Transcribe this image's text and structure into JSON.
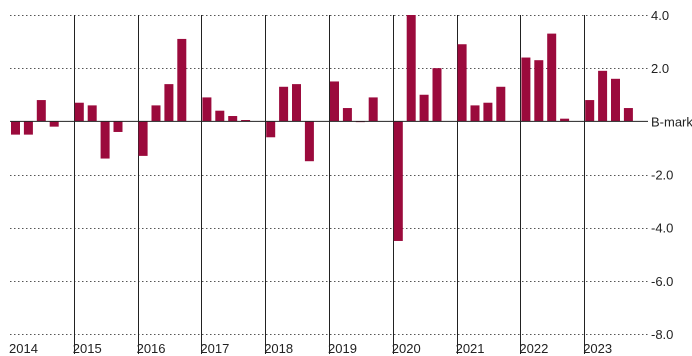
{
  "chart_data": {
    "type": "bar",
    "title": "",
    "xlabel": "",
    "ylabel": "",
    "ylim": [
      -8,
      4
    ],
    "yticks": [
      4,
      2,
      0,
      -2,
      -4,
      -6,
      -8
    ],
    "ytick_labels": [
      "4.0",
      "2.0",
      "B-mark",
      "-2.0",
      "-4.0",
      "-6.0",
      "-8.0"
    ],
    "grid": "horizontal dotted",
    "bar_color": "#9b0a3c",
    "groups": [
      {
        "year": "2014",
        "values": [
          -0.5,
          -0.5,
          0.8,
          -0.2
        ]
      },
      {
        "year": "2015",
        "values": [
          0.7,
          0.6,
          -1.4,
          -0.4
        ]
      },
      {
        "year": "2016",
        "values": [
          -1.3,
          0.6,
          1.4,
          3.1
        ]
      },
      {
        "year": "2017",
        "values": [
          0.9,
          0.4,
          0.2,
          0.05
        ]
      },
      {
        "year": "2018",
        "values": [
          -0.6,
          1.3,
          1.4,
          -1.5
        ]
      },
      {
        "year": "2019",
        "values": [
          1.5,
          0.5,
          0.0,
          0.9
        ]
      },
      {
        "year": "2020",
        "values": [
          -4.5,
          4.0,
          1.0,
          2.0
        ]
      },
      {
        "year": "2021",
        "values": [
          2.9,
          0.6,
          0.7,
          1.3
        ]
      },
      {
        "year": "2022",
        "values": [
          2.4,
          2.3,
          3.3,
          0.1
        ]
      },
      {
        "year": "2023",
        "values": [
          0.8,
          1.9,
          1.6,
          0.5
        ]
      }
    ]
  }
}
